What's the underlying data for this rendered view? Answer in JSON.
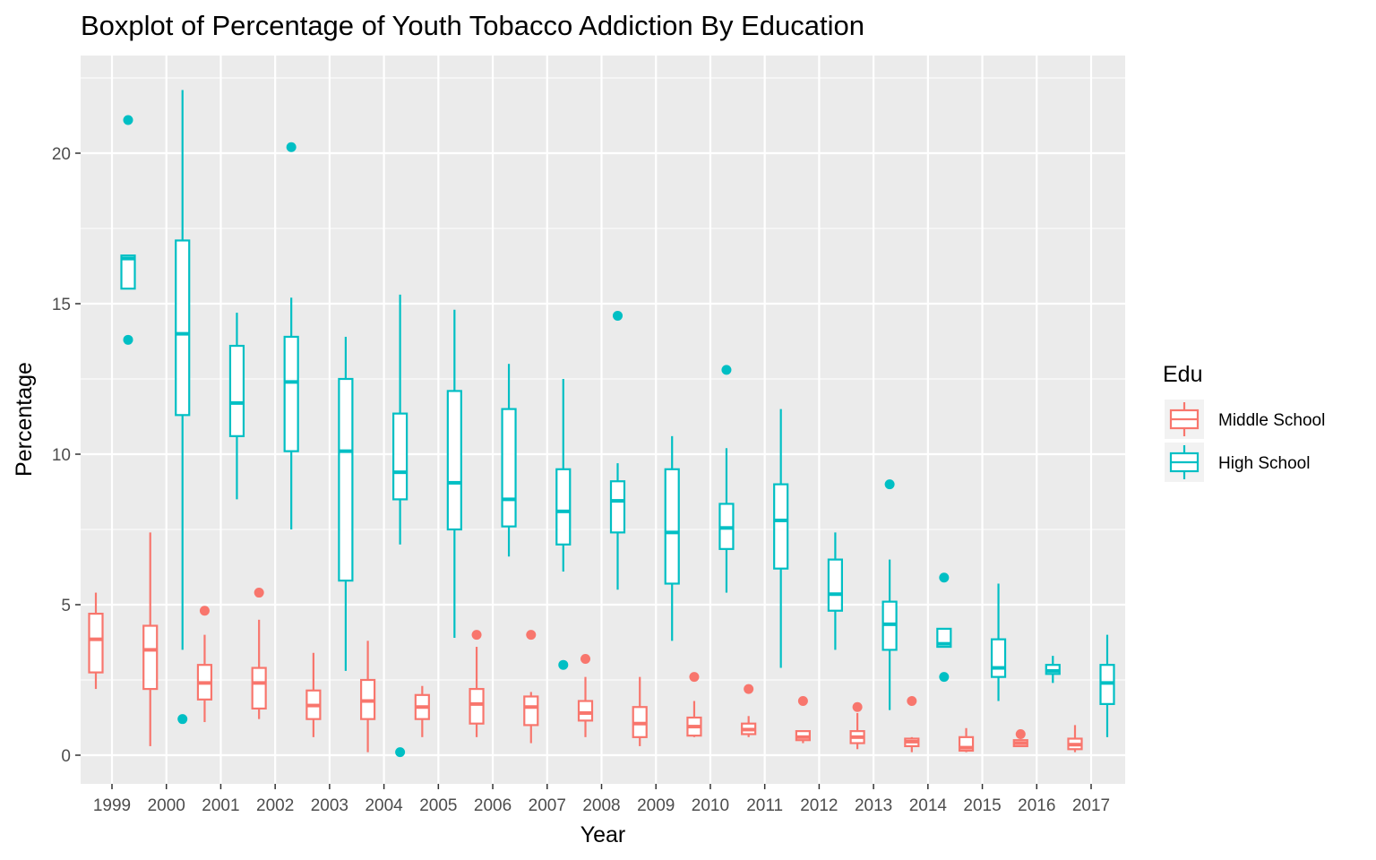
{
  "chart_data": {
    "type": "boxplot",
    "title": "Boxplot of Percentage of Youth Tobacco Addiction By Education",
    "xlabel": "Year",
    "ylabel": "Percentage",
    "ylim": [
      -1,
      23
    ],
    "yticks": [
      0,
      5,
      10,
      15,
      20
    ],
    "grid": true,
    "legend_position": "right",
    "legend_title": "Edu",
    "categories": [
      "1999",
      "2000",
      "2001",
      "2002",
      "2003",
      "2004",
      "2005",
      "2006",
      "2007",
      "2008",
      "2009",
      "2010",
      "2011",
      "2012",
      "2013",
      "2014",
      "2015",
      "2016",
      "2017"
    ],
    "series": [
      {
        "name": "Middle School",
        "color": "#F8766D",
        "boxes": [
          {
            "min": 2.2,
            "q1": 2.75,
            "median": 3.85,
            "q3": 4.7,
            "max": 5.4,
            "outliers": []
          },
          {
            "min": 0.3,
            "q1": 2.2,
            "median": 3.5,
            "q3": 4.3,
            "max": 7.4,
            "outliers": []
          },
          {
            "min": 1.1,
            "q1": 1.85,
            "median": 2.4,
            "q3": 3.0,
            "max": 4.0,
            "outliers": [
              4.8
            ]
          },
          {
            "min": 1.2,
            "q1": 1.55,
            "median": 2.4,
            "q3": 2.9,
            "max": 4.5,
            "outliers": [
              5.4
            ]
          },
          {
            "min": 0.6,
            "q1": 1.2,
            "median": 1.65,
            "q3": 2.15,
            "max": 3.4,
            "outliers": []
          },
          {
            "min": 0.1,
            "q1": 1.2,
            "median": 1.8,
            "q3": 2.5,
            "max": 3.8,
            "outliers": []
          },
          {
            "min": 0.6,
            "q1": 1.2,
            "median": 1.6,
            "q3": 2.0,
            "max": 2.3,
            "outliers": []
          },
          {
            "min": 0.6,
            "q1": 1.05,
            "median": 1.7,
            "q3": 2.2,
            "max": 3.6,
            "outliers": [
              4.0
            ]
          },
          {
            "min": 0.4,
            "q1": 1.0,
            "median": 1.6,
            "q3": 1.95,
            "max": 2.1,
            "outliers": [
              4.0
            ]
          },
          {
            "min": 0.6,
            "q1": 1.15,
            "median": 1.4,
            "q3": 1.8,
            "max": 2.6,
            "outliers": [
              3.2
            ]
          },
          {
            "min": 0.3,
            "q1": 0.6,
            "median": 1.05,
            "q3": 1.6,
            "max": 2.6,
            "outliers": []
          },
          {
            "min": 0.6,
            "q1": 0.65,
            "median": 0.95,
            "q3": 1.25,
            "max": 1.8,
            "outliers": [
              2.6
            ]
          },
          {
            "min": 0.6,
            "q1": 0.7,
            "median": 0.85,
            "q3": 1.05,
            "max": 1.3,
            "outliers": [
              2.2
            ]
          },
          {
            "min": 0.4,
            "q1": 0.5,
            "median": 0.6,
            "q3": 0.8,
            "max": 0.8,
            "outliers": [
              1.8
            ]
          },
          {
            "min": 0.2,
            "q1": 0.4,
            "median": 0.6,
            "q3": 0.8,
            "max": 1.4,
            "outliers": [
              1.6
            ]
          },
          {
            "min": 0.1,
            "q1": 0.3,
            "median": 0.45,
            "q3": 0.55,
            "max": 0.6,
            "outliers": [
              1.8
            ]
          },
          {
            "min": 0.1,
            "q1": 0.15,
            "median": 0.25,
            "q3": 0.6,
            "max": 0.9,
            "outliers": []
          },
          {
            "min": 0.3,
            "q1": 0.3,
            "median": 0.4,
            "q3": 0.5,
            "max": 0.5,
            "outliers": [
              0.7
            ]
          },
          {
            "min": 0.1,
            "q1": 0.2,
            "median": 0.35,
            "q3": 0.55,
            "max": 1.0,
            "outliers": []
          }
        ]
      },
      {
        "name": "High School",
        "color": "#00BFC4",
        "boxes": [
          {
            "min": 15.5,
            "q1": 15.5,
            "median": 16.5,
            "q3": 16.6,
            "max": 16.6,
            "outliers": [
              13.8,
              21.1
            ]
          },
          {
            "min": 3.5,
            "q1": 11.3,
            "median": 14.0,
            "q3": 17.1,
            "max": 22.1,
            "outliers": [
              1.2
            ]
          },
          {
            "min": 8.5,
            "q1": 10.6,
            "median": 11.7,
            "q3": 13.6,
            "max": 14.7,
            "outliers": []
          },
          {
            "min": 7.5,
            "q1": 10.1,
            "median": 12.4,
            "q3": 13.9,
            "max": 15.2,
            "outliers": [
              20.2
            ]
          },
          {
            "min": 2.8,
            "q1": 5.8,
            "median": 10.1,
            "q3": 12.5,
            "max": 13.9,
            "outliers": []
          },
          {
            "min": 7.0,
            "q1": 8.5,
            "median": 9.4,
            "q3": 11.35,
            "max": 15.3,
            "outliers": [
              0.1
            ]
          },
          {
            "min": 3.9,
            "q1": 7.5,
            "median": 9.05,
            "q3": 12.1,
            "max": 14.8,
            "outliers": []
          },
          {
            "min": 6.6,
            "q1": 7.6,
            "median": 8.5,
            "q3": 11.5,
            "max": 13.0,
            "outliers": []
          },
          {
            "min": 6.1,
            "q1": 7.0,
            "median": 8.1,
            "q3": 9.5,
            "max": 12.5,
            "outliers": [
              3.0
            ]
          },
          {
            "min": 5.5,
            "q1": 7.4,
            "median": 8.45,
            "q3": 9.1,
            "max": 9.7,
            "outliers": [
              14.6
            ]
          },
          {
            "min": 3.8,
            "q1": 5.7,
            "median": 7.4,
            "q3": 9.5,
            "max": 10.6,
            "outliers": []
          },
          {
            "min": 5.4,
            "q1": 6.85,
            "median": 7.55,
            "q3": 8.35,
            "max": 10.2,
            "outliers": [
              12.8
            ]
          },
          {
            "min": 2.9,
            "q1": 6.2,
            "median": 7.8,
            "q3": 9.0,
            "max": 11.5,
            "outliers": []
          },
          {
            "min": 3.5,
            "q1": 4.8,
            "median": 5.35,
            "q3": 6.5,
            "max": 7.4,
            "outliers": []
          },
          {
            "min": 1.5,
            "q1": 3.5,
            "median": 4.35,
            "q3": 5.1,
            "max": 6.5,
            "outliers": [
              9.0
            ]
          },
          {
            "min": 3.6,
            "q1": 3.6,
            "median": 3.7,
            "q3": 4.2,
            "max": 4.2,
            "outliers": [
              2.6,
              5.9
            ]
          },
          {
            "min": 1.8,
            "q1": 2.6,
            "median": 2.9,
            "q3": 3.85,
            "max": 5.7,
            "outliers": []
          },
          {
            "min": 2.4,
            "q1": 2.7,
            "median": 2.8,
            "q3": 3.0,
            "max": 3.3,
            "outliers": []
          },
          {
            "min": 0.6,
            "q1": 1.7,
            "median": 2.4,
            "q3": 3.0,
            "max": 4.0,
            "outliers": []
          }
        ]
      }
    ]
  }
}
